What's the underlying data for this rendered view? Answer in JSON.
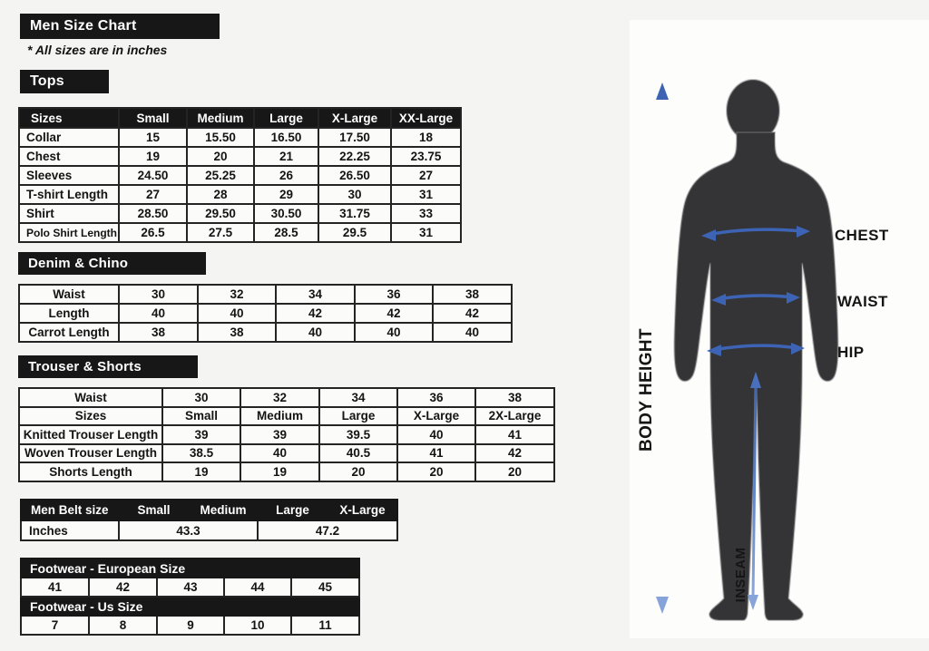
{
  "page": {
    "title": "Men Size Chart",
    "note": "* All sizes are in inches",
    "colors": {
      "header_black": "#171717",
      "arrow_blue": "#3d64b4",
      "body_gray": "#343436"
    }
  },
  "tops": {
    "label": "Tops",
    "columns": [
      "Sizes",
      "Small",
      "Medium",
      "Large",
      "X-Large",
      "XX-Large"
    ],
    "rows": [
      {
        "label": "Collar",
        "values": [
          "15",
          "15.50",
          "16.50",
          "17.50",
          "18"
        ]
      },
      {
        "label": "Chest",
        "values": [
          "19",
          "20",
          "21",
          "22.25",
          "23.75"
        ]
      },
      {
        "label": "Sleeves",
        "values": [
          "24.50",
          "25.25",
          "26",
          "26.50",
          "27"
        ]
      },
      {
        "label": "T-shirt Length",
        "values": [
          "27",
          "28",
          "29",
          "30",
          "31"
        ]
      },
      {
        "label": "Shirt",
        "values": [
          "28.50",
          "29.50",
          "30.50",
          "31.75",
          "33"
        ]
      },
      {
        "label": "Polo Shirt Length",
        "values": [
          "26.5",
          "27.5",
          "28.5",
          "29.5",
          "31"
        ]
      }
    ]
  },
  "denim": {
    "label": "Denim & Chino",
    "rows": [
      {
        "label": "Waist",
        "values": [
          "30",
          "32",
          "34",
          "36",
          "38"
        ]
      },
      {
        "label": "Length",
        "values": [
          "40",
          "40",
          "42",
          "42",
          "42"
        ]
      },
      {
        "label": "Carrot Length",
        "values": [
          "38",
          "38",
          "40",
          "40",
          "40"
        ]
      }
    ]
  },
  "trouser": {
    "label": "Trouser & Shorts",
    "rows": [
      {
        "label": "Waist",
        "values": [
          "30",
          "32",
          "34",
          "36",
          "38"
        ]
      },
      {
        "label": "Sizes",
        "values": [
          "Small",
          "Medium",
          "Large",
          "X-Large",
          "2X-Large"
        ]
      },
      {
        "label": "Knitted Trouser Length",
        "values": [
          "39",
          "39",
          "39.5",
          "40",
          "41"
        ]
      },
      {
        "label": "Woven Trouser Length",
        "values": [
          "38.5",
          "40",
          "40.5",
          "41",
          "42"
        ]
      },
      {
        "label": "Shorts Length",
        "values": [
          "19",
          "19",
          "20",
          "20",
          "20"
        ]
      }
    ]
  },
  "belt": {
    "columns": [
      "Men Belt size",
      "Small",
      "Medium",
      "Large",
      "X-Large"
    ],
    "row_label": "Inches",
    "values": [
      "43.3",
      "47.2"
    ]
  },
  "footwear": {
    "european_label": "Footwear - European Size",
    "european_sizes": [
      "41",
      "42",
      "43",
      "44",
      "45"
    ],
    "us_label": "Footwear - Us Size",
    "us_sizes": [
      "7",
      "8",
      "9",
      "10",
      "11"
    ]
  },
  "figure": {
    "labels": {
      "body_height": "BODY HEIGHT",
      "chest": "CHEST",
      "waist": "WAIST",
      "hip": "HIP",
      "inseam": "INSEAM"
    }
  }
}
